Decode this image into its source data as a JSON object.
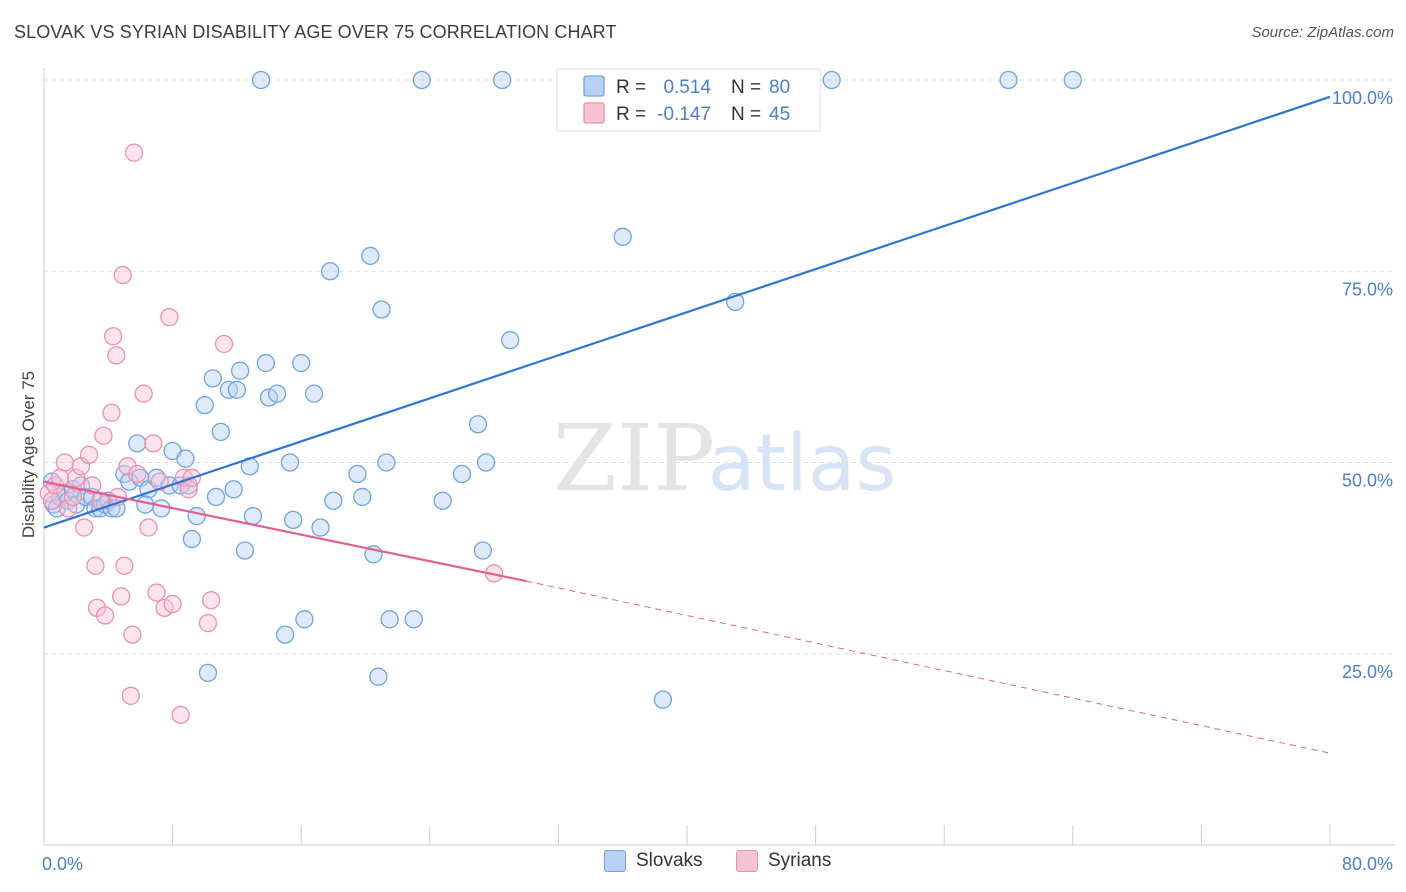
{
  "title": "SLOVAK VS SYRIAN DISABILITY AGE OVER 75 CORRELATION CHART",
  "source": "Source: ZipAtlas.com",
  "watermark": {
    "zip": "ZIP",
    "atlas": "atlas"
  },
  "colors": {
    "blue": "#6fa3e0",
    "blue_fill": "#b8d0f1",
    "blue_line": "#2f74d0",
    "pink": "#ec8fb0",
    "pink_fill": "#f6c3d5",
    "pink_line": "#e0608e",
    "axis_text": "#4a7fcc",
    "grid": "#dddddd"
  },
  "legend": {
    "rows": [
      {
        "r_label": "R =",
        "r_value": "0.514",
        "n_label": "N =",
        "n_value": "80",
        "series": "blue"
      },
      {
        "r_label": "R =",
        "r_value": "-0.147",
        "n_label": "N =",
        "n_value": "45",
        "series": "pink"
      }
    ]
  },
  "bottom_legend": [
    "Slovaks",
    "Syrians"
  ],
  "chart_data": {
    "type": "scatter",
    "xlabel": "",
    "ylabel": "Disability Age Over 75",
    "xlim": [
      0,
      80
    ],
    "ylim": [
      0,
      100
    ],
    "x_tick_labels": [
      "0.0%",
      "80.0%"
    ],
    "y_tick_labels": [
      "25.0%",
      "50.0%",
      "75.0%",
      "100.0%"
    ],
    "y_ticks": [
      25,
      50,
      75,
      100
    ],
    "grid": true,
    "series": [
      {
        "name": "Slovaks",
        "color": "blue",
        "trend": {
          "x0": 0,
          "y0": 41.5,
          "x1": 80,
          "y1": 97.8,
          "dashed_to": null
        },
        "points": [
          [
            0.5,
            47.5
          ],
          [
            0.6,
            44.5
          ],
          [
            0.8,
            44.0
          ],
          [
            1.0,
            45.5
          ],
          [
            1.3,
            46.0
          ],
          [
            1.5,
            45.0
          ],
          [
            1.8,
            46.5
          ],
          [
            2.0,
            44.5
          ],
          [
            2.3,
            47.0
          ],
          [
            2.6,
            45.5
          ],
          [
            3.0,
            45.5
          ],
          [
            3.2,
            44.0
          ],
          [
            3.5,
            44.0
          ],
          [
            3.8,
            44.5
          ],
          [
            4.0,
            45.0
          ],
          [
            4.2,
            44.0
          ],
          [
            4.5,
            44.0
          ],
          [
            5.0,
            48.5
          ],
          [
            5.3,
            47.5
          ],
          [
            5.8,
            52.5
          ],
          [
            6.0,
            48.0
          ],
          [
            6.5,
            46.5
          ],
          [
            6.3,
            44.5
          ],
          [
            7.0,
            48.0
          ],
          [
            7.3,
            44.0
          ],
          [
            7.8,
            47.0
          ],
          [
            8.0,
            51.5
          ],
          [
            8.5,
            47.0
          ],
          [
            8.8,
            50.5
          ],
          [
            9.0,
            47.0
          ],
          [
            9.2,
            40.0
          ],
          [
            9.5,
            43.0
          ],
          [
            10.0,
            57.5
          ],
          [
            10.2,
            22.5
          ],
          [
            10.5,
            61.0
          ],
          [
            10.7,
            45.5
          ],
          [
            11.0,
            54.0
          ],
          [
            11.5,
            59.5
          ],
          [
            11.8,
            46.5
          ],
          [
            12.0,
            59.5
          ],
          [
            12.2,
            62.0
          ],
          [
            12.5,
            38.5
          ],
          [
            12.8,
            49.5
          ],
          [
            13.0,
            43.0
          ],
          [
            13.5,
            100.0
          ],
          [
            13.8,
            63.0
          ],
          [
            14.0,
            58.5
          ],
          [
            14.5,
            59.0
          ],
          [
            15.0,
            27.5
          ],
          [
            15.3,
            50.0
          ],
          [
            15.5,
            42.5
          ],
          [
            16.0,
            63.0
          ],
          [
            16.2,
            29.5
          ],
          [
            16.8,
            59.0
          ],
          [
            17.2,
            41.5
          ],
          [
            17.8,
            75.0
          ],
          [
            18.0,
            45.0
          ],
          [
            19.5,
            48.5
          ],
          [
            19.8,
            45.5
          ],
          [
            20.3,
            77.0
          ],
          [
            20.5,
            38.0
          ],
          [
            20.8,
            22.0
          ],
          [
            21.0,
            70.0
          ],
          [
            21.3,
            50.0
          ],
          [
            21.5,
            29.5
          ],
          [
            23.0,
            29.5
          ],
          [
            23.5,
            100.0
          ],
          [
            24.8,
            45.0
          ],
          [
            26.0,
            48.5
          ],
          [
            27.0,
            55.0
          ],
          [
            27.3,
            38.5
          ],
          [
            27.5,
            50.0
          ],
          [
            28.5,
            100.0
          ],
          [
            29.0,
            66.0
          ],
          [
            36.0,
            79.5
          ],
          [
            38.5,
            19.0
          ],
          [
            43.0,
            71.0
          ],
          [
            49.0,
            100.0
          ],
          [
            60.0,
            100.0
          ],
          [
            64.0,
            100.0
          ]
        ]
      },
      {
        "name": "Syrians",
        "color": "pink",
        "trend": {
          "x0": 0,
          "y0": 47.5,
          "x1": 30,
          "y1": 34.5,
          "dashed_to": [
            80,
            12.0
          ]
        },
        "points": [
          [
            0.3,
            46.0
          ],
          [
            0.5,
            45.0
          ],
          [
            0.7,
            47.0
          ],
          [
            1.0,
            48.0
          ],
          [
            1.3,
            50.0
          ],
          [
            1.5,
            44.0
          ],
          [
            1.8,
            45.5
          ],
          [
            2.0,
            48.0
          ],
          [
            2.3,
            49.5
          ],
          [
            2.5,
            41.5
          ],
          [
            2.8,
            51.0
          ],
          [
            3.0,
            47.0
          ],
          [
            3.2,
            36.5
          ],
          [
            3.3,
            31.0
          ],
          [
            3.5,
            45.0
          ],
          [
            3.7,
            53.5
          ],
          [
            3.8,
            30.0
          ],
          [
            4.2,
            56.5
          ],
          [
            4.3,
            66.5
          ],
          [
            4.5,
            64.0
          ],
          [
            4.6,
            45.5
          ],
          [
            4.8,
            32.5
          ],
          [
            4.9,
            74.5
          ],
          [
            5.0,
            36.5
          ],
          [
            5.2,
            49.5
          ],
          [
            5.4,
            19.5
          ],
          [
            5.5,
            27.5
          ],
          [
            5.6,
            90.5
          ],
          [
            5.8,
            48.5
          ],
          [
            6.2,
            59.0
          ],
          [
            6.5,
            41.5
          ],
          [
            6.8,
            52.5
          ],
          [
            7.0,
            33.0
          ],
          [
            7.2,
            47.5
          ],
          [
            7.5,
            31.0
          ],
          [
            7.8,
            69.0
          ],
          [
            8.0,
            31.5
          ],
          [
            8.5,
            17.0
          ],
          [
            8.7,
            48.0
          ],
          [
            9.0,
            46.5
          ],
          [
            9.2,
            48.0
          ],
          [
            10.2,
            29.0
          ],
          [
            10.4,
            32.0
          ],
          [
            11.2,
            65.5
          ],
          [
            28.0,
            35.5
          ]
        ]
      }
    ]
  }
}
